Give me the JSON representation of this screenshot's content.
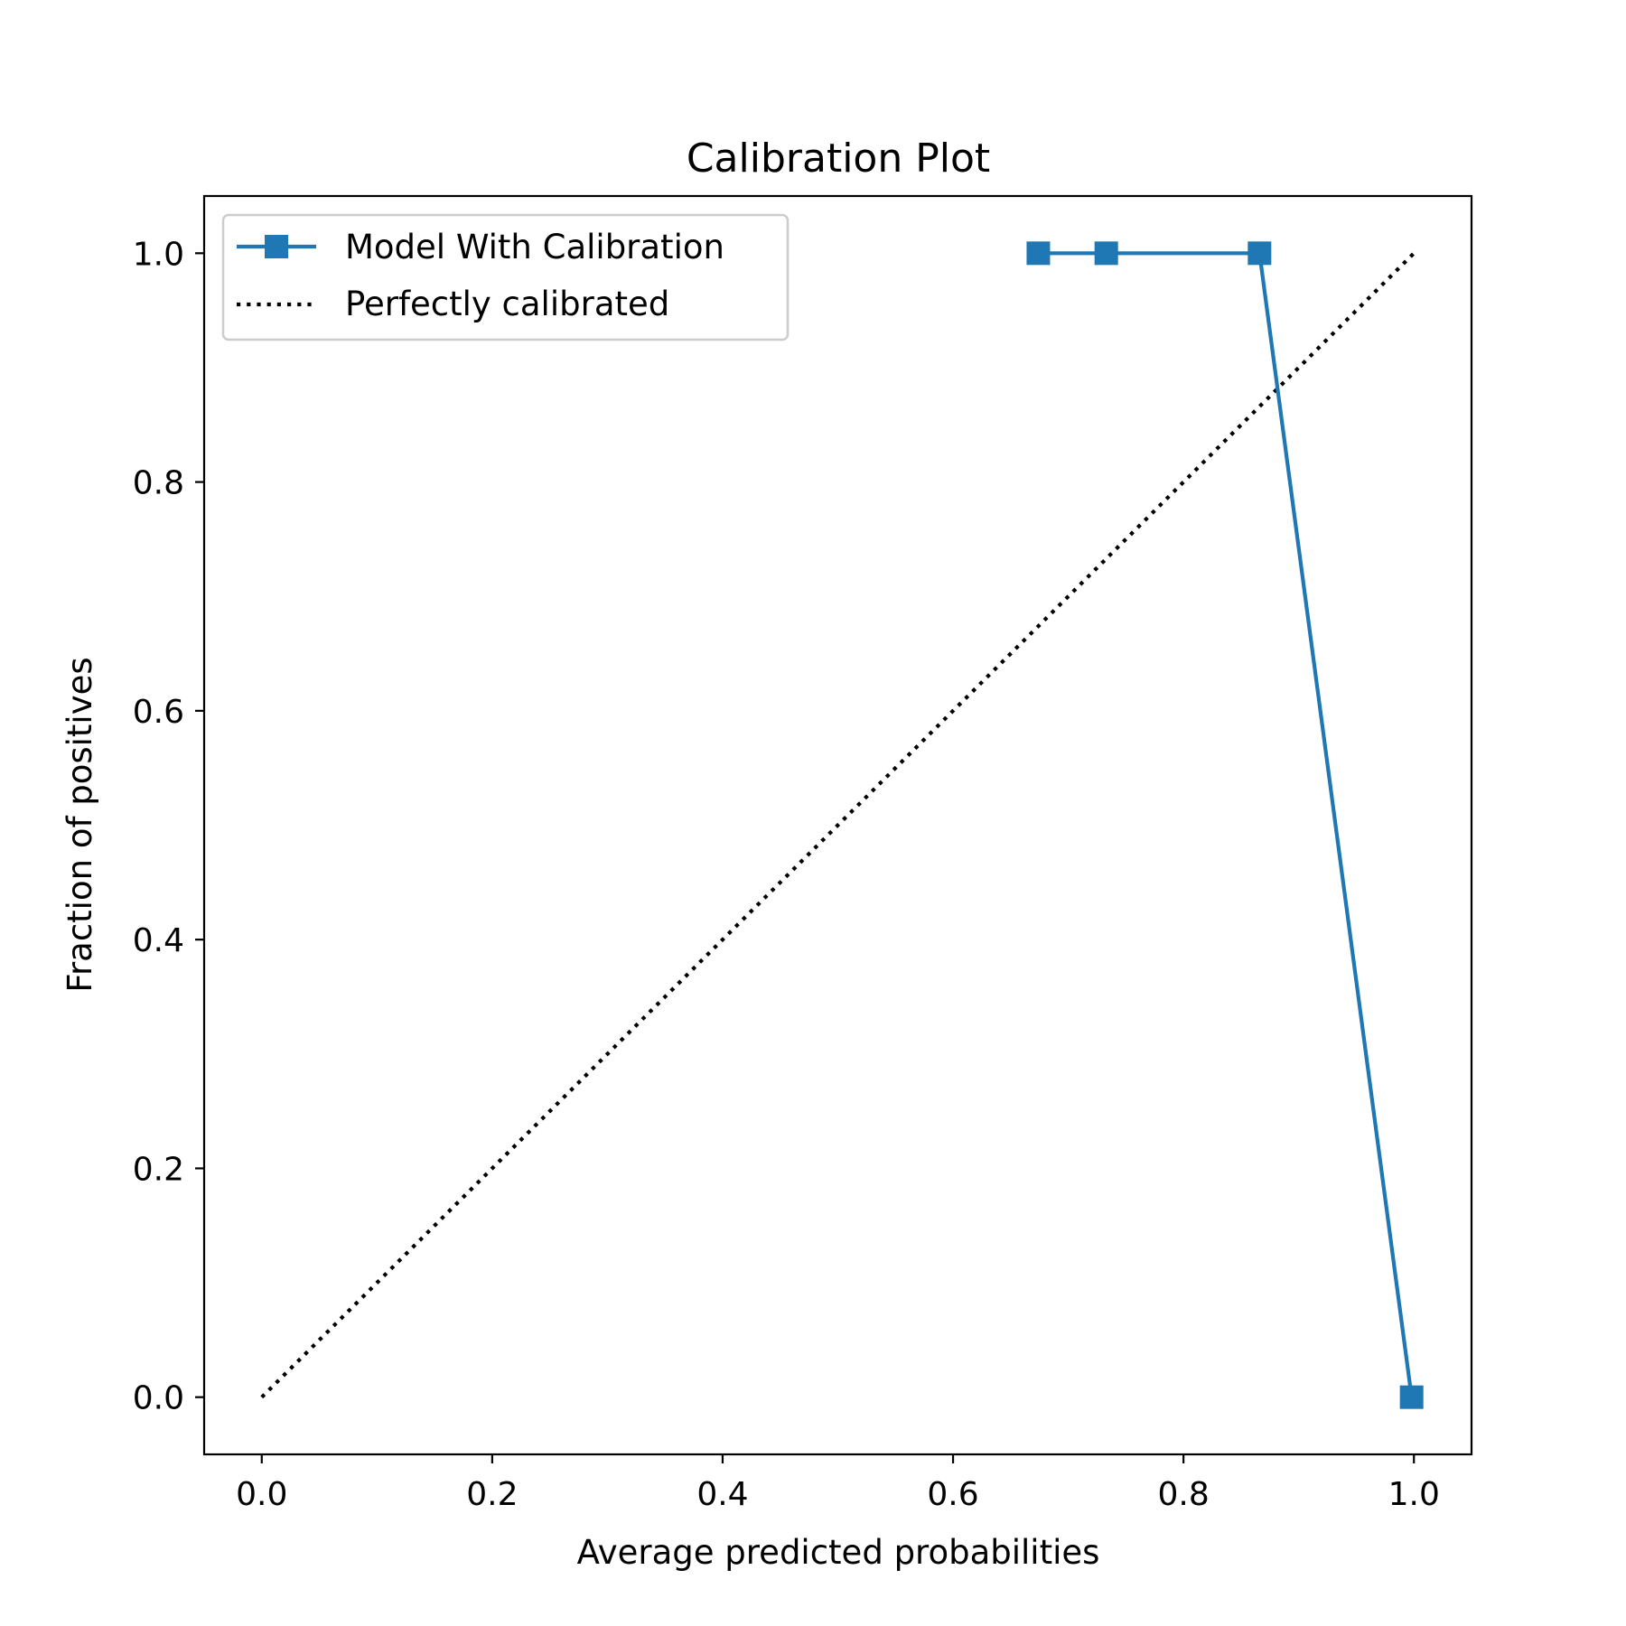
{
  "chart_data": {
    "type": "line",
    "title": "Calibration Plot",
    "xlabel": "Average predicted probabilities",
    "ylabel": "Fraction of positives",
    "xlim": [
      -0.05,
      1.05
    ],
    "ylim": [
      -0.05,
      1.05
    ],
    "xticks": [
      0.0,
      0.2,
      0.4,
      0.6,
      0.8,
      1.0
    ],
    "yticks": [
      0.0,
      0.2,
      0.4,
      0.6,
      0.8,
      1.0
    ],
    "xtick_labels": [
      "0.0",
      "0.2",
      "0.4",
      "0.6",
      "0.8",
      "1.0"
    ],
    "ytick_labels": [
      "0.0",
      "0.2",
      "0.4",
      "0.6",
      "0.8",
      "1.0"
    ],
    "grid": false,
    "legend_position": "top-left",
    "series": [
      {
        "name": "Model With Calibration",
        "style": "solid",
        "marker": "square",
        "color": "#1f77b4",
        "x": [
          0.674,
          0.733,
          0.866,
          0.998
        ],
        "y": [
          1.0,
          1.0,
          1.0,
          0.0
        ]
      },
      {
        "name": "Perfectly calibrated",
        "style": "dotted",
        "marker": "none",
        "color": "#000000",
        "x": [
          0.0,
          1.0
        ],
        "y": [
          0.0,
          1.0
        ]
      }
    ]
  }
}
